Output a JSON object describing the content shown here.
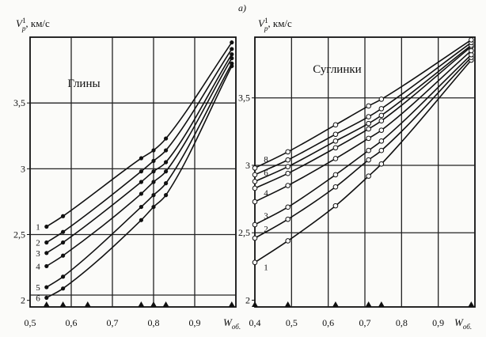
{
  "figure": {
    "label": "а)"
  },
  "chart_data": [
    {
      "type": "line",
      "title": "Глины",
      "ylabel": "V_p^1, км/с",
      "ylabel_parts": {
        "base": "V",
        "sub": "p",
        "sup": "1",
        "unit": ", км/с"
      },
      "xlabel_parts": {
        "base": "W",
        "sub": "об."
      },
      "xlim": [
        0.5,
        1.0
      ],
      "ylim": [
        1.95,
        4.0
      ],
      "xticks": [
        {
          "v": 0.5,
          "label": "0,5"
        },
        {
          "v": 0.6,
          "label": "0,6"
        },
        {
          "v": 0.7,
          "label": "0,7"
        },
        {
          "v": 0.8,
          "label": "0,8"
        },
        {
          "v": 0.9,
          "label": "0,9"
        }
      ],
      "yticks": [
        {
          "v": 2.0,
          "label": "2"
        },
        {
          "v": 2.5,
          "label": "2,5"
        },
        {
          "v": 3.0,
          "label": "3"
        },
        {
          "v": 3.5,
          "label": "3,5"
        }
      ],
      "vgrid": [
        0.6,
        0.7,
        0.8,
        0.9
      ],
      "hgrid": [
        2.04,
        2.5,
        3.0,
        3.5
      ],
      "triangles": [
        0.54,
        0.58,
        0.64,
        0.77,
        0.8,
        0.83,
        0.99
      ],
      "marker": "filled",
      "series": [
        {
          "name": "1",
          "x": [
            0.54,
            0.58,
            0.77,
            0.8,
            0.83,
            0.99
          ],
          "y": [
            2.56,
            2.64,
            3.08,
            3.14,
            3.23,
            3.96
          ]
        },
        {
          "name": "2",
          "x": [
            0.54,
            0.58,
            0.77,
            0.8,
            0.83,
            0.99
          ],
          "y": [
            2.44,
            2.52,
            2.98,
            3.06,
            3.14,
            3.91
          ]
        },
        {
          "name": "3",
          "x": [
            0.54,
            0.58,
            0.77,
            0.8,
            0.83,
            0.99
          ],
          "y": [
            2.36,
            2.44,
            2.9,
            2.98,
            3.05,
            3.87
          ]
        },
        {
          "name": "4",
          "x": [
            0.54,
            0.58,
            0.77,
            0.8,
            0.83,
            0.99
          ],
          "y": [
            2.26,
            2.34,
            2.81,
            2.9,
            2.98,
            3.84
          ]
        },
        {
          "name": "5",
          "x": [
            0.54,
            0.58,
            0.77,
            0.8,
            0.83,
            0.99
          ],
          "y": [
            2.1,
            2.18,
            2.71,
            2.8,
            2.89,
            3.8
          ]
        },
        {
          "name": "6",
          "x": [
            0.54,
            0.58,
            0.77,
            0.8,
            0.83,
            0.99
          ],
          "y": [
            2.02,
            2.09,
            2.61,
            2.71,
            2.8,
            3.78
          ]
        }
      ]
    },
    {
      "type": "line",
      "title": "Суглинки",
      "ylabel": "V_p^1, км/с",
      "ylabel_parts": {
        "base": "V",
        "sub": "p",
        "sup": "1",
        "unit": ", км/с"
      },
      "xlabel_parts": {
        "base": "W",
        "sub": "об."
      },
      "xlim": [
        0.4,
        1.0
      ],
      "ylim": [
        1.95,
        3.95
      ],
      "xticks": [
        {
          "v": 0.4,
          "label": "0,4"
        },
        {
          "v": 0.5,
          "label": "0,5"
        },
        {
          "v": 0.6,
          "label": "0,6"
        },
        {
          "v": 0.7,
          "label": "0,7"
        },
        {
          "v": 0.8,
          "label": "0,8"
        },
        {
          "v": 0.9,
          "label": "0,9"
        }
      ],
      "yticks": [
        {
          "v": 2.0,
          "label": "2"
        },
        {
          "v": 2.5,
          "label": "2,5"
        },
        {
          "v": 3.0,
          "label": "3"
        },
        {
          "v": 3.5,
          "label": "3,5"
        }
      ],
      "vgrid": [
        0.5,
        0.6,
        0.7,
        0.8,
        0.9
      ],
      "hgrid": [
        2.5,
        3.0,
        3.5
      ],
      "triangles": [
        0.4,
        0.49,
        0.62,
        0.71,
        0.745,
        0.99
      ],
      "marker": "open",
      "series": [
        {
          "name": "1",
          "x": [
            0.4,
            0.49,
            0.62,
            0.71,
            0.745,
            0.99
          ],
          "y": [
            2.28,
            2.44,
            2.7,
            2.92,
            3.01,
            3.78
          ]
        },
        {
          "name": "2",
          "x": [
            0.4,
            0.49,
            0.62,
            0.71,
            0.745,
            0.99
          ],
          "y": [
            2.46,
            2.6,
            2.84,
            3.04,
            3.11,
            3.8
          ]
        },
        {
          "name": "3",
          "x": [
            0.4,
            0.49,
            0.62,
            0.71,
            0.745,
            0.99
          ],
          "y": [
            2.56,
            2.69,
            2.93,
            3.11,
            3.18,
            3.82
          ]
        },
        {
          "name": "4",
          "x": [
            0.4,
            0.49,
            0.62,
            0.71,
            0.745,
            0.99
          ],
          "y": [
            2.73,
            2.85,
            3.05,
            3.2,
            3.26,
            3.85
          ]
        },
        {
          "name": "5",
          "x": [
            0.4,
            0.49,
            0.62,
            0.71,
            0.745,
            0.99
          ],
          "y": [
            2.83,
            2.94,
            3.13,
            3.27,
            3.33,
            3.88
          ]
        },
        {
          "name": "6",
          "x": [
            0.4,
            0.49,
            0.62,
            0.71,
            0.745,
            0.99
          ],
          "y": [
            2.88,
            2.99,
            3.18,
            3.31,
            3.37,
            3.89
          ]
        },
        {
          "name": "7",
          "x": [
            0.4,
            0.49,
            0.62,
            0.71,
            0.745,
            0.99
          ],
          "y": [
            2.93,
            3.04,
            3.23,
            3.36,
            3.42,
            3.91
          ]
        },
        {
          "name": "8",
          "x": [
            0.4,
            0.49,
            0.62,
            0.71,
            0.745,
            0.99
          ],
          "y": [
            2.98,
            3.1,
            3.3,
            3.44,
            3.49,
            3.93
          ]
        }
      ],
      "curve_labels": [
        "8",
        "6",
        "4",
        "3",
        "2",
        "1"
      ]
    }
  ]
}
